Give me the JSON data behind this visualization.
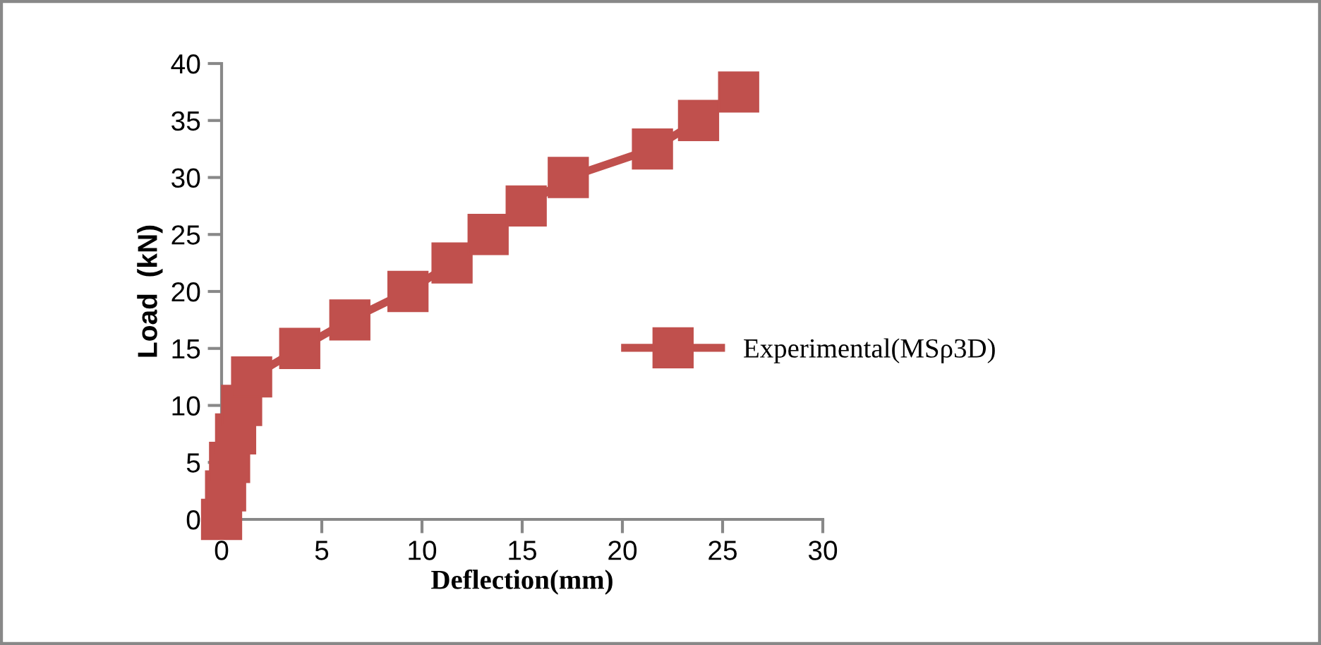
{
  "chart_data": {
    "type": "line",
    "xlabel": "Deflection(mm)",
    "ylabel": "Load  (kN)",
    "x": [
      0,
      0.2,
      0.4,
      0.7,
      1.0,
      1.5,
      3.9,
      6.4,
      9.3,
      11.5,
      13.3,
      15.2,
      17.3,
      21.5,
      23.8,
      25.8
    ],
    "series": [
      {
        "name": "Experimental(MSρ3D)",
        "color": "#c0504d",
        "values": [
          0,
          2.5,
          5,
          7.5,
          10,
          12.5,
          15,
          17.5,
          20,
          22.5,
          25,
          27.5,
          30,
          32.5,
          35,
          37.5
        ]
      }
    ],
    "xlim": [
      0,
      30
    ],
    "xticks": [
      0,
      5,
      10,
      15,
      20,
      25,
      30
    ],
    "ylim": [
      0,
      40
    ],
    "yticks": [
      0,
      5,
      10,
      15,
      20,
      25,
      30,
      35,
      40
    ],
    "marker": "square",
    "line_style": "solid",
    "grid": false,
    "legend": "right"
  }
}
